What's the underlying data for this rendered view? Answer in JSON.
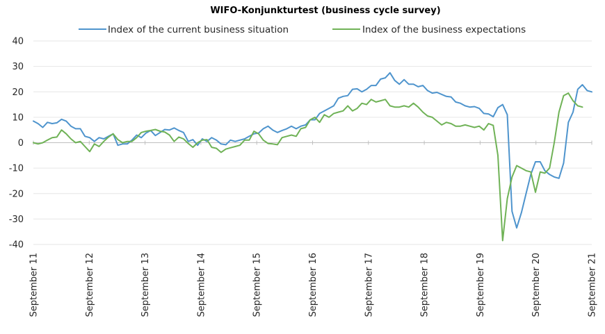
{
  "chart_data": {
    "type": "line",
    "title": "WIFO-Konjunkturtest (business cycle survey)",
    "ylim": [
      -40,
      40
    ],
    "y_ticks": [
      -40,
      -30,
      -20,
      -10,
      0,
      10,
      20,
      30,
      40
    ],
    "grid": true,
    "legend_position": "top",
    "x_tick_labels": [
      "September 11",
      "September 12",
      "September 13",
      "September 14",
      "September 15",
      "September 16",
      "September 17",
      "September 18",
      "September 19",
      "September 20",
      "September 21"
    ],
    "x_start": "2011-09",
    "colors": {
      "current": "#4e94cd",
      "expectations": "#6fb256",
      "grid": "#e6e6e6",
      "axis": "#bfbfbf"
    },
    "series": [
      {
        "name": "Index of the current business situation",
        "values": [
          8.5,
          7.5,
          6,
          8,
          7.5,
          7.8,
          9.2,
          8.5,
          6.5,
          5.5,
          5.5,
          2.5,
          2,
          0.5,
          2,
          1.5,
          2.5,
          3.5,
          -1,
          -0.5,
          -0.5,
          1,
          3,
          2,
          3.8,
          4.8,
          2.8,
          4,
          5.2,
          5,
          5.8,
          4.8,
          4,
          0.5,
          1.2,
          -1,
          1.5,
          0.5,
          2,
          1,
          -0.5,
          -0.8,
          1,
          0.5,
          1,
          1.5,
          2.5,
          3.5,
          3.8,
          5.5,
          6.5,
          5,
          4,
          4.8,
          5.5,
          6.5,
          5.5,
          6.5,
          7,
          9,
          9,
          11.5,
          12.5,
          13.5,
          14.5,
          17.5,
          18.2,
          18.5,
          21,
          21.2,
          20,
          21,
          22.5,
          22.5,
          25,
          25.5,
          27.5,
          24.5,
          23,
          24.8,
          23,
          23,
          22,
          22.5,
          20.5,
          19.5,
          19.8,
          19,
          18.2,
          18,
          16,
          15.5,
          14.5,
          14,
          14.2,
          13.5,
          11.5,
          11.3,
          10.2,
          13.8,
          15,
          11,
          -27,
          -33.5,
          -27.5,
          -20,
          -12.5,
          -7.5,
          -7.5,
          -11,
          -12.5,
          -13.5,
          -14,
          -8,
          8,
          12,
          21,
          22.8,
          20.5,
          20
        ],
        "color": "#4e94cd"
      },
      {
        "name": "Index of the business expectations",
        "values": [
          0,
          -0.5,
          0,
          1,
          2,
          2.2,
          5,
          3.5,
          1.5,
          0,
          0.5,
          -1.5,
          -3.5,
          -0.5,
          -1.5,
          0.5,
          2.2,
          3.5,
          1.2,
          0,
          0.5,
          0.5,
          2,
          4,
          4.5,
          4.8,
          5.2,
          4.5,
          4.2,
          3,
          0.5,
          2.2,
          1.5,
          -0.3,
          -1.8,
          0,
          1,
          1.2,
          -1.8,
          -2.2,
          -3.8,
          -2.5,
          -2,
          -1.5,
          -1,
          1,
          1,
          4.5,
          3.5,
          1,
          -0.3,
          -0.5,
          -0.8,
          2,
          2.5,
          3,
          2.5,
          5.5,
          6,
          9,
          10,
          8,
          11,
          10,
          11.5,
          12,
          12.5,
          14.5,
          12.5,
          13.5,
          15.5,
          15,
          17,
          16,
          16.5,
          17,
          14.5,
          14,
          14,
          14.5,
          14,
          15.5,
          14,
          12,
          10.5,
          10,
          8.5,
          7,
          8,
          7.5,
          6.5,
          6.5,
          7,
          6.5,
          6,
          6.5,
          5,
          7.5,
          6.8,
          -5,
          -38.5,
          -22,
          -13.5,
          -9,
          -10,
          -11,
          -11.5,
          -19.5,
          -11.5,
          -12,
          -10,
          0,
          12,
          18.5,
          19.5,
          16.5,
          14.5,
          14
        ],
        "color": "#6fb256"
      }
    ]
  }
}
